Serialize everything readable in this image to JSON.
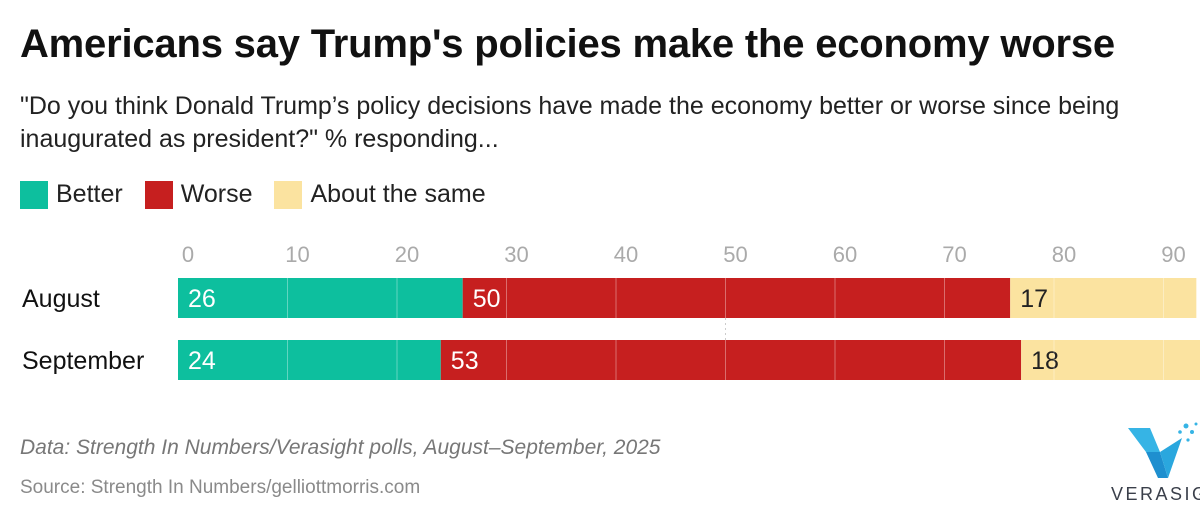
{
  "colors": {
    "better": "#0dbf9e",
    "worse": "#c61f1f",
    "same": "#fbe3a0"
  },
  "chart_data": {
    "type": "bar",
    "orientation": "horizontal",
    "stacked": true,
    "title": "Americans say Trump's policies make the economy worse",
    "subtitle": "\"Do you think Donald Trump’s policy decisions have made the economy better or worse since being inaugurated as president?\" % responding...",
    "categories": [
      "August",
      "September"
    ],
    "series": [
      {
        "name": "Better",
        "values": [
          26,
          24
        ]
      },
      {
        "name": "Worse",
        "values": [
          50,
          53
        ]
      },
      {
        "name": "About the same",
        "values": [
          17,
          18
        ]
      }
    ],
    "xticks": [
      "0",
      "10",
      "20",
      "30",
      "40",
      "50",
      "60",
      "70",
      "80",
      "90"
    ],
    "xlim": [
      0,
      93
    ],
    "grid": true,
    "legend": "top-left"
  },
  "footer": {
    "note": "Data: Strength In Numbers/Verasight polls, August–September, 2025",
    "source": "Source: Strength In Numbers/gelliottmorris.com",
    "logo_text": "VERASIGHT"
  }
}
